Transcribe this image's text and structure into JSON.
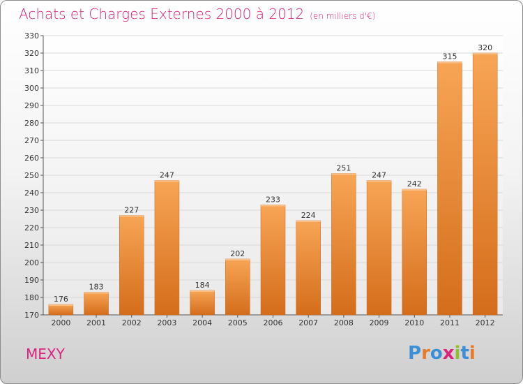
{
  "header": {
    "title": "Achats et Charges Externes 2000 à 2012",
    "subtitle": "(en milliers d'€)"
  },
  "footer": {
    "town": "MEXY",
    "logo": "Proxiti"
  },
  "colors": {
    "title": "#d9237d",
    "bar_light": "#f7a555",
    "bar_dark": "#d46d1b",
    "logo_letters": [
      "#3a8fd6",
      "#e87b2a",
      "#3a8fd6",
      "#d9237d",
      "#8fbf2f",
      "#3a8fd6",
      "#e87b2a"
    ]
  },
  "chart_data": {
    "type": "bar",
    "categories": [
      "2000",
      "2001",
      "2002",
      "2003",
      "2004",
      "2005",
      "2006",
      "2007",
      "2008",
      "2009",
      "2010",
      "2011",
      "2012"
    ],
    "values": [
      176,
      183,
      227,
      247,
      184,
      202,
      233,
      224,
      251,
      247,
      242,
      315,
      320
    ],
    "ylim": [
      170,
      330
    ],
    "yticks": [
      170,
      180,
      190,
      200,
      210,
      220,
      230,
      240,
      250,
      260,
      270,
      280,
      290,
      300,
      310,
      320,
      330
    ],
    "grid": true,
    "data_labels": true
  }
}
